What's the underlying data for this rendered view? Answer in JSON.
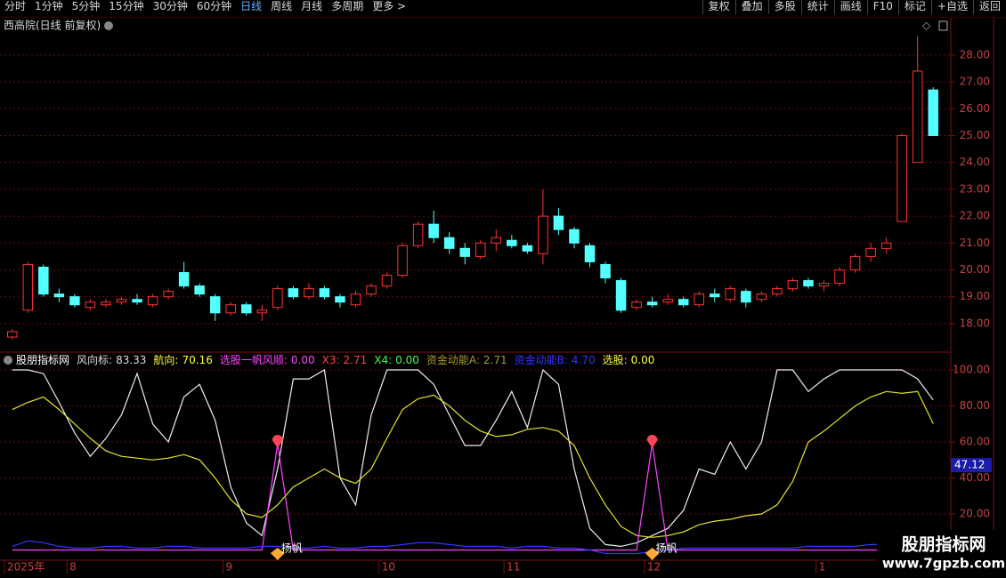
{
  "toolbar": {
    "periods": [
      "分时",
      "1分钟",
      "5分钟",
      "15分钟",
      "30分钟",
      "60分钟",
      "日线",
      "周线",
      "月线",
      "多周期",
      "更多 >"
    ],
    "active": "日线",
    "buttons": [
      "复权",
      "叠加",
      "多股",
      "统计",
      "画线",
      "F10",
      "标记",
      "+自选",
      "返回"
    ]
  },
  "chart_data": [
    {
      "type": "candlestick",
      "title": "西高院(日线 前复权)",
      "up_color": "#ff3232",
      "down_color": "#54ffff",
      "ylim": [
        16.97,
        28.79
      ],
      "yticks": [
        {
          "value": 18,
          "label": "18.00"
        },
        {
          "value": 19,
          "label": "19.00"
        },
        {
          "value": 20,
          "label": "20.00"
        },
        {
          "value": 21,
          "label": "21.00"
        },
        {
          "value": 22,
          "label": "22.00"
        },
        {
          "value": 23,
          "label": "23.00"
        },
        {
          "value": 24,
          "label": "24.00"
        },
        {
          "value": 25,
          "label": "25.00"
        },
        {
          "value": 26,
          "label": "26.00"
        },
        {
          "value": 27,
          "label": "27.00"
        },
        {
          "value": 28,
          "label": "28.00"
        }
      ],
      "grid": true,
      "open": [
        17.5,
        18.5,
        20.1,
        19.1,
        19.0,
        18.6,
        18.7,
        18.8,
        18.9,
        18.7,
        19.0,
        19.9,
        19.4,
        19.0,
        18.4,
        18.7,
        18.4,
        18.6,
        19.3,
        19.0,
        19.3,
        19.0,
        18.7,
        19.1,
        19.4,
        19.8,
        20.9,
        21.7,
        21.2,
        20.8,
        20.5,
        21.0,
        21.1,
        20.9,
        20.6,
        22.0,
        21.5,
        20.9,
        20.2,
        19.6,
        18.6,
        18.8,
        18.8,
        18.9,
        18.7,
        19.1,
        18.9,
        19.2,
        18.9,
        19.1,
        19.3,
        19.6,
        19.4,
        19.5,
        20.0,
        20.5,
        20.8,
        21.8,
        24.0,
        26.7
      ],
      "high": [
        17.8,
        20.3,
        20.2,
        19.3,
        19.1,
        18.9,
        18.9,
        19.0,
        19.1,
        19.1,
        19.3,
        20.3,
        19.5,
        19.1,
        18.8,
        18.8,
        18.7,
        19.4,
        19.4,
        19.5,
        19.4,
        19.1,
        19.2,
        19.5,
        19.9,
        21.0,
        21.8,
        22.2,
        21.4,
        21.0,
        21.1,
        21.5,
        21.3,
        21.0,
        23.0,
        22.3,
        21.6,
        21.0,
        20.3,
        19.7,
        18.9,
        19.0,
        19.1,
        19.0,
        19.2,
        19.3,
        19.4,
        19.3,
        19.2,
        19.4,
        19.7,
        19.7,
        19.6,
        20.1,
        20.6,
        21.0,
        21.2,
        25.1,
        28.7,
        26.8
      ],
      "low": [
        17.4,
        18.4,
        19.0,
        18.8,
        18.6,
        18.5,
        18.6,
        18.7,
        18.7,
        18.6,
        18.9,
        19.3,
        19.0,
        18.1,
        18.3,
        18.3,
        18.1,
        18.5,
        18.9,
        18.9,
        18.9,
        18.6,
        18.6,
        19.0,
        19.3,
        19.7,
        20.8,
        21.0,
        20.6,
        20.2,
        20.4,
        20.7,
        20.8,
        20.6,
        20.2,
        21.3,
        20.8,
        20.1,
        19.5,
        18.4,
        18.5,
        18.6,
        18.7,
        18.6,
        18.6,
        18.8,
        18.8,
        18.6,
        18.8,
        19.0,
        19.2,
        19.3,
        19.2,
        19.4,
        19.9,
        20.3,
        20.6,
        21.8,
        24.0,
        25.0
      ],
      "close": [
        17.7,
        20.2,
        19.1,
        19.0,
        18.7,
        18.8,
        18.8,
        18.9,
        18.8,
        19.0,
        19.2,
        19.4,
        19.1,
        18.4,
        18.7,
        18.4,
        18.5,
        19.3,
        19.0,
        19.3,
        19.0,
        18.8,
        19.1,
        19.4,
        19.8,
        20.9,
        21.7,
        21.2,
        20.8,
        20.5,
        21.0,
        21.2,
        20.9,
        20.7,
        22.0,
        21.5,
        21.0,
        20.3,
        19.7,
        18.5,
        18.8,
        18.7,
        18.9,
        18.7,
        19.1,
        19.0,
        19.3,
        18.8,
        19.1,
        19.3,
        19.6,
        19.4,
        19.5,
        20.0,
        20.5,
        20.8,
        21.0,
        25.0,
        27.4,
        25.0
      ]
    },
    {
      "type": "line",
      "title": "股朋指标网",
      "legend": [
        {
          "name": "风向标:",
          "value": "83.33",
          "color": "#dddddd"
        },
        {
          "name": "航向:",
          "value": "70.16",
          "color": "#ffff33"
        },
        {
          "name": "选股一帆风顺:",
          "value": "0.00",
          "color": "#ff44ff"
        },
        {
          "name": "X3:",
          "value": "2.71",
          "color": "#ff4444"
        },
        {
          "name": "X4:",
          "value": "0.00",
          "color": "#44ff44"
        },
        {
          "name": "资金动能A:",
          "value": "2.71",
          "color": "#a89a30"
        },
        {
          "name": "资金动能B:",
          "value": "4.70",
          "color": "#3535ff"
        },
        {
          "name": "选股:",
          "value": "0.00",
          "color": "#ffff33"
        }
      ],
      "ylim": [
        -5.7,
        108.9
      ],
      "yticks": [
        {
          "value": 20,
          "label": "20.00"
        },
        {
          "value": 40,
          "label": "40.00"
        },
        {
          "value": 60,
          "label": "60.00"
        },
        {
          "value": 80,
          "label": "80.00"
        },
        {
          "value": 100,
          "label": "100.00"
        }
      ],
      "grid": true,
      "cursor_label": 47.12,
      "xticks": [
        {
          "value": 0,
          "label": "2025年"
        },
        {
          "value": 4,
          "label": "8"
        },
        {
          "value": 14,
          "label": "9"
        },
        {
          "value": 24,
          "label": "10"
        },
        {
          "value": 32,
          "label": "11"
        },
        {
          "value": 41,
          "label": "12"
        },
        {
          "value": 52,
          "label": "1"
        }
      ],
      "series": [
        {
          "color": "#eeeeee",
          "values": [
            100,
            100,
            98,
            82,
            65,
            52,
            62,
            75,
            98,
            70,
            60,
            85,
            92,
            72,
            35,
            15,
            8,
            45,
            95,
            95,
            100,
            40,
            25,
            75,
            100,
            100,
            100,
            92,
            75,
            58,
            58,
            72,
            88,
            68,
            100,
            92,
            45,
            12,
            3,
            2,
            4,
            8,
            12,
            22,
            45,
            42,
            60,
            45,
            60,
            100,
            100,
            88,
            95,
            100,
            100,
            100,
            100,
            100,
            95,
            83.33
          ]
        },
        {
          "color": "#e6e62a",
          "values": [
            78,
            82,
            85,
            78,
            70,
            62,
            55,
            52,
            51,
            50,
            51,
            53,
            50,
            40,
            28,
            20,
            18,
            25,
            35,
            40,
            45,
            40,
            37,
            45,
            62,
            78,
            84,
            86,
            80,
            72,
            66,
            63,
            64,
            67,
            68,
            66,
            58,
            40,
            25,
            13,
            8,
            7,
            8,
            10,
            14,
            16,
            17,
            19,
            20,
            25,
            38,
            60,
            66,
            73,
            80,
            85,
            88,
            87,
            88,
            70.16
          ]
        },
        {
          "color": "#ff44ff",
          "values": [
            0,
            0,
            0,
            0,
            0,
            0,
            0,
            0,
            0,
            0,
            0,
            0,
            0,
            0,
            0,
            0,
            0,
            59,
            0,
            0,
            0,
            0,
            0,
            0,
            0,
            0,
            0,
            0,
            0,
            0,
            0,
            0,
            0,
            0,
            0,
            0,
            0,
            0,
            0,
            0,
            0,
            59,
            0,
            0,
            0,
            0,
            0,
            0,
            0,
            0,
            0,
            0,
            0,
            0,
            0,
            0,
            0,
            0,
            0,
            0
          ]
        },
        {
          "color": "#3535ff",
          "values": [
            2,
            5,
            4,
            2,
            1,
            1,
            2,
            2,
            1,
            1,
            2,
            2,
            1,
            1,
            1,
            1,
            2,
            2,
            1,
            1,
            2,
            1,
            1,
            2,
            2,
            3,
            4,
            4,
            3,
            2,
            2,
            2,
            1,
            2,
            2,
            1,
            1,
            0,
            -2,
            -2,
            -2,
            -1,
            0,
            1,
            1,
            1,
            1,
            1,
            1,
            1,
            1,
            2,
            2,
            2,
            2,
            3,
            3,
            2,
            2,
            4.7
          ]
        }
      ],
      "annotations": [
        {
          "label": "扬帆",
          "index": 17
        },
        {
          "label": "扬帆",
          "index": 41
        }
      ]
    }
  ],
  "watermark": {
    "name": "股朋指标网",
    "url": "www.7gpzb.com"
  }
}
